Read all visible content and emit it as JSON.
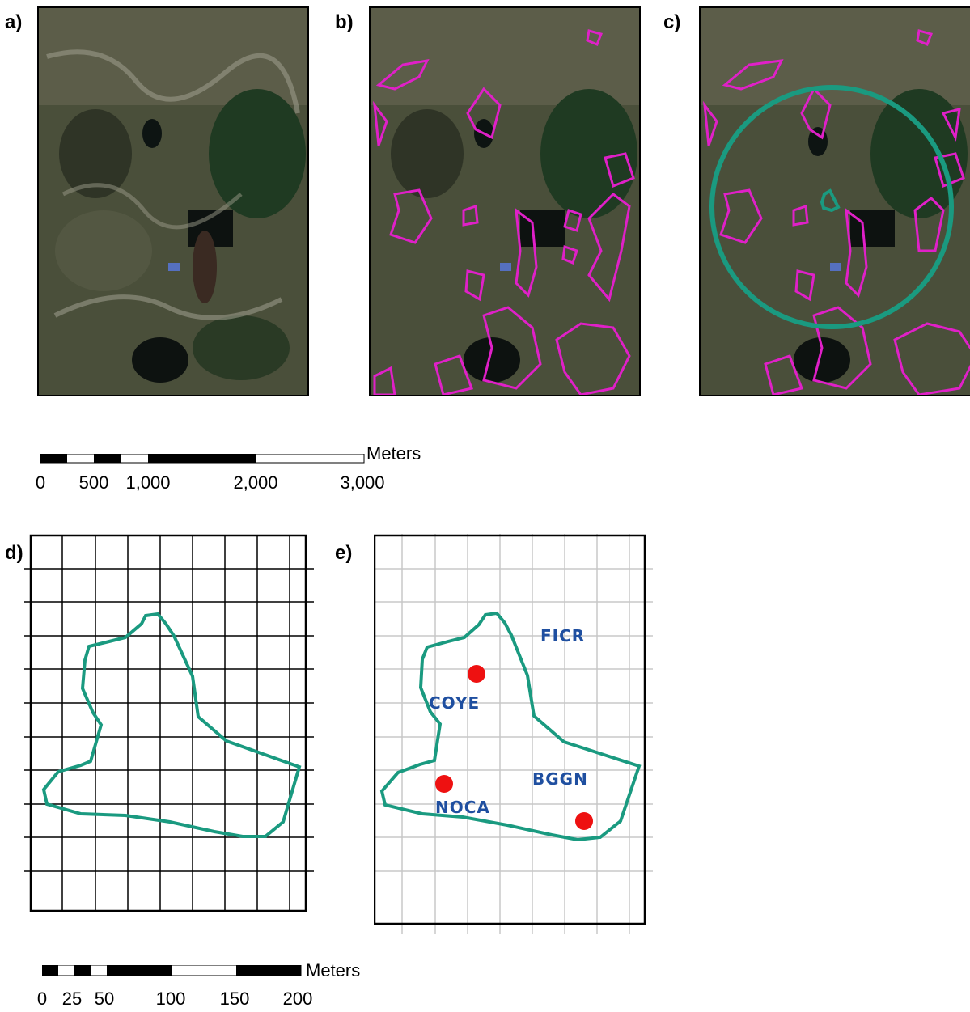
{
  "panels": {
    "a": "a)",
    "b": "b)",
    "c": "c)",
    "d": "d)",
    "e": "e)"
  },
  "scalebar_top": {
    "unit": "Meters",
    "labels": [
      "0",
      "500",
      "1,000",
      "2,000",
      "3,000"
    ]
  },
  "scalebar_bottom": {
    "unit": "Meters",
    "labels": [
      "0",
      "25",
      "50",
      "100",
      "150",
      "200"
    ]
  },
  "species": {
    "ficr": "FICR",
    "coye": "COYE",
    "bggn": "BGGN",
    "noca": "NOCA"
  },
  "colors": {
    "patch_outline": "#e020c8",
    "buffer_circle": "#1a9a80",
    "point": "#ee1111",
    "species_text": "#1f4fa0"
  }
}
